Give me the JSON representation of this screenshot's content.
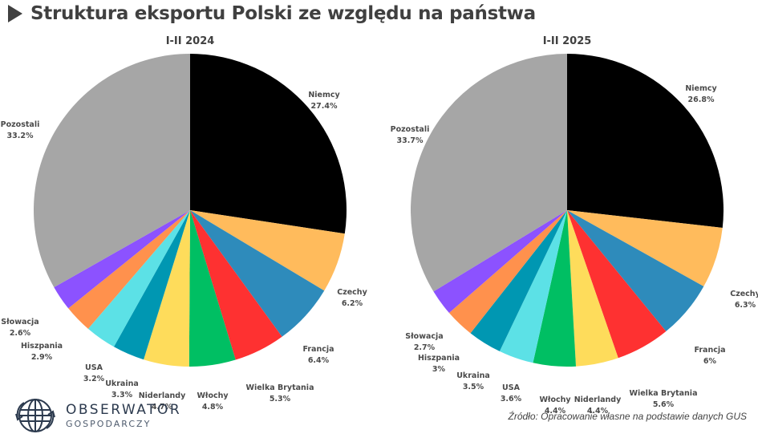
{
  "header": {
    "title": "Struktura eksportu Polski ze względu na państwa",
    "arrow_icon": "play-triangle"
  },
  "charts": [
    {
      "title": "I-II 2024",
      "slices": [
        {
          "label": "Niemcy",
          "value_text": "27.4%",
          "color": "#000000"
        },
        {
          "label": "Czechy",
          "value_text": "6.2%",
          "color": "#ffbb5c"
        },
        {
          "label": "Francja",
          "value_text": "6.4%",
          "color": "#2e8bbb"
        },
        {
          "label": "Wielka Brytania",
          "value_text": "5.3%",
          "color": "#fe3131"
        },
        {
          "label": "Włochy",
          "value_text": "4.8%",
          "color": "#00bf63"
        },
        {
          "label": "Niderlandy",
          "value_text": "4.7%",
          "color": "#fedc5b"
        },
        {
          "label": "Ukraina",
          "value_text": "3.3%",
          "color": "#0097b2"
        },
        {
          "label": "USA",
          "value_text": "3.2%",
          "color": "#5ce1e6"
        },
        {
          "label": "Hiszpania",
          "value_text": "2.9%",
          "color": "#ff914d"
        },
        {
          "label": "Słowacja",
          "value_text": "2.6%",
          "color": "#8c52ff"
        },
        {
          "label": "Pozostali",
          "value_text": "33.2%",
          "color": "#a6a6a6"
        }
      ]
    },
    {
      "title": "I-II 2025",
      "slices": [
        {
          "label": "Niemcy",
          "value_text": "26.8%",
          "color": "#000000"
        },
        {
          "label": "Czechy",
          "value_text": "6.3%",
          "color": "#ffbb5c"
        },
        {
          "label": "Francja",
          "value_text": "6%",
          "color": "#2e8bbb"
        },
        {
          "label": "Wielka Brytania",
          "value_text": "5.6%",
          "color": "#fe3131"
        },
        {
          "label": "Niderlandy",
          "value_text": "4.4%",
          "color": "#fedc5b"
        },
        {
          "label": "Włochy",
          "value_text": "4.4%",
          "color": "#00bf63"
        },
        {
          "label": "USA",
          "value_text": "3.6%",
          "color": "#5ce1e6"
        },
        {
          "label": "Ukraina",
          "value_text": "3.5%",
          "color": "#0097b2"
        },
        {
          "label": "Hiszpania",
          "value_text": "3%",
          "color": "#ff914d"
        },
        {
          "label": "Słowacja",
          "value_text": "2.7%",
          "color": "#8c52ff"
        },
        {
          "label": "Pozostali",
          "value_text": "33.7%",
          "color": "#a6a6a6"
        }
      ]
    }
  ],
  "chart_data": [
    {
      "type": "pie",
      "title": "I-II 2024",
      "categories": [
        "Niemcy",
        "Czechy",
        "Francja",
        "Wielka Brytania",
        "Włochy",
        "Niderlandy",
        "Ukraina",
        "USA",
        "Hiszpania",
        "Słowacja",
        "Pozostali"
      ],
      "values": [
        27.4,
        6.2,
        6.4,
        5.3,
        4.8,
        4.7,
        3.3,
        3.2,
        2.9,
        2.6,
        33.2
      ],
      "unit": "%",
      "start_angle": "12 o'clock, clockwise",
      "legend": "none (direct labels)"
    },
    {
      "type": "pie",
      "title": "I-II 2025",
      "categories": [
        "Niemcy",
        "Czechy",
        "Francja",
        "Wielka Brytania",
        "Niderlandy",
        "Włochy",
        "USA",
        "Ukraina",
        "Hiszpania",
        "Słowacja",
        "Pozostali"
      ],
      "values": [
        26.8,
        6.3,
        6.0,
        5.6,
        4.4,
        4.4,
        3.6,
        3.5,
        3.0,
        2.7,
        33.7
      ],
      "unit": "%",
      "start_angle": "12 o'clock, clockwise",
      "legend": "none (direct labels)"
    }
  ],
  "footer": {
    "logo_name": "OBSERWATOR",
    "logo_sub": "GOSPODARCZY",
    "logo_icon": "globe-recycle",
    "source": "Źródło: Opracowanie własne na podstawie danych GUS"
  }
}
